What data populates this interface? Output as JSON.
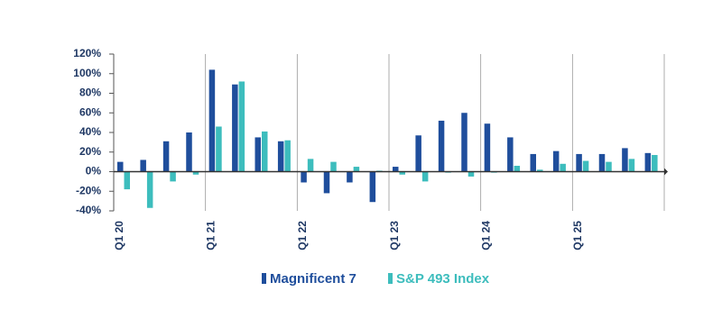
{
  "chart_data": {
    "type": "bar",
    "categories": [
      "Q1 20",
      null,
      null,
      null,
      "Q1 21",
      null,
      null,
      null,
      "Q1 22",
      null,
      null,
      null,
      "Q1 23",
      null,
      null,
      null,
      "Q1 24",
      null,
      null,
      null,
      "Q1 25",
      null,
      null,
      null
    ],
    "series": [
      {
        "name": "Magnificent 7",
        "color": "#1f4e9c",
        "values": [
          10,
          12,
          31,
          40,
          104,
          89,
          35,
          31,
          -11,
          -22,
          -11,
          -31,
          5,
          37,
          52,
          60,
          49,
          35,
          18,
          21,
          18,
          18,
          24,
          19
        ]
      },
      {
        "name": "S&P 493 Index",
        "color": "#3dbdbd",
        "values": [
          -18,
          -37,
          -10,
          -3,
          46,
          92,
          41,
          32,
          13,
          10,
          5,
          1,
          -3,
          -10,
          -1,
          -5,
          -1,
          6,
          2,
          8,
          11,
          10,
          13,
          17
        ]
      }
    ],
    "ylim": [
      -40,
      120
    ],
    "yticks": [
      {
        "value": -40,
        "label": "-40%"
      },
      {
        "value": -20,
        "label": "-20%"
      },
      {
        "value": 0,
        "label": "0%"
      },
      {
        "value": 20,
        "label": "20%"
      },
      {
        "value": 40,
        "label": "40%"
      },
      {
        "value": 60,
        "label": "60%"
      },
      {
        "value": 80,
        "label": "80%"
      },
      {
        "value": 100,
        "label": "100%"
      },
      {
        "value": 120,
        "label": "120%"
      }
    ],
    "legend": "bottom"
  }
}
